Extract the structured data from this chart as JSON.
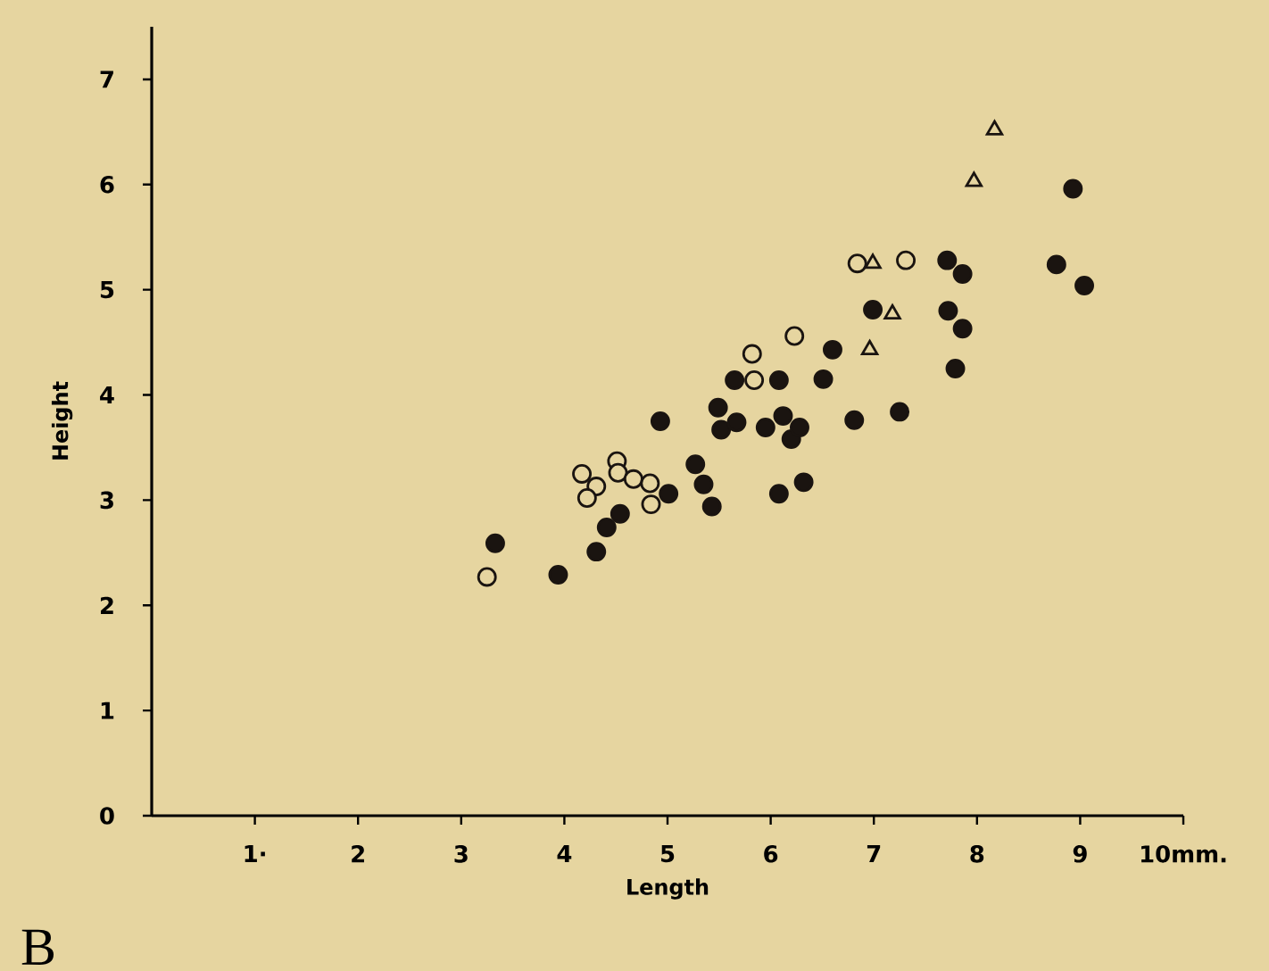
{
  "chart_data": {
    "type": "scatter",
    "xlabel": "Length",
    "ylabel": "Height",
    "xlim": [
      0,
      10
    ],
    "ylim": [
      0,
      7.5
    ],
    "xticks": [
      {
        "value": 1,
        "label": "1·"
      },
      2,
      3,
      4,
      5,
      6,
      7,
      8,
      9,
      {
        "value": 10,
        "label": "10mm."
      }
    ],
    "yticks": [
      0,
      1,
      2,
      3,
      4,
      5,
      6,
      7
    ],
    "grid": false,
    "annotations": [
      "B"
    ],
    "series": [
      {
        "color": "#1a1410",
        "marker": "circle",
        "x": [
          3.33,
          3.94,
          4.31,
          4.41,
          4.54,
          4.93,
          5.01,
          5.27,
          5.35,
          5.43,
          5.49,
          5.52,
          5.67,
          5.65,
          6.08,
          5.95,
          6.12,
          6.2,
          6.28,
          6.08,
          6.32,
          6.51,
          6.6,
          6.81,
          7.25,
          6.99,
          7.71,
          7.86,
          7.72,
          7.86,
          7.79,
          8.93,
          8.77,
          9.04
        ],
        "values": [
          2.59,
          2.29,
          2.51,
          2.74,
          2.87,
          3.75,
          3.06,
          3.34,
          3.15,
          2.94,
          3.88,
          3.67,
          3.74,
          4.14,
          4.14,
          3.69,
          3.8,
          3.58,
          3.69,
          3.06,
          3.17,
          4.15,
          4.43,
          3.76,
          3.84,
          4.81,
          5.28,
          5.15,
          4.8,
          4.63,
          4.25,
          5.96,
          5.24,
          5.04
        ]
      },
      {
        "color": "#1a1410",
        "marker": "circle",
        "x": [
          3.25,
          4.17,
          4.31,
          4.22,
          4.51,
          4.52,
          4.67,
          4.83,
          4.84,
          5.82,
          5.84,
          6.23,
          6.84,
          7.31
        ],
        "values": [
          2.27,
          3.25,
          3.13,
          3.02,
          3.37,
          3.26,
          3.2,
          3.16,
          2.96,
          4.39,
          4.14,
          4.56,
          5.25,
          5.28
        ]
      },
      {
        "color": "#1a1410",
        "marker": "triangle",
        "x": [
          8.17,
          7.97,
          6.99,
          7.18,
          6.96
        ],
        "values": [
          6.52,
          6.03,
          5.25,
          4.77,
          4.43
        ]
      }
    ]
  }
}
